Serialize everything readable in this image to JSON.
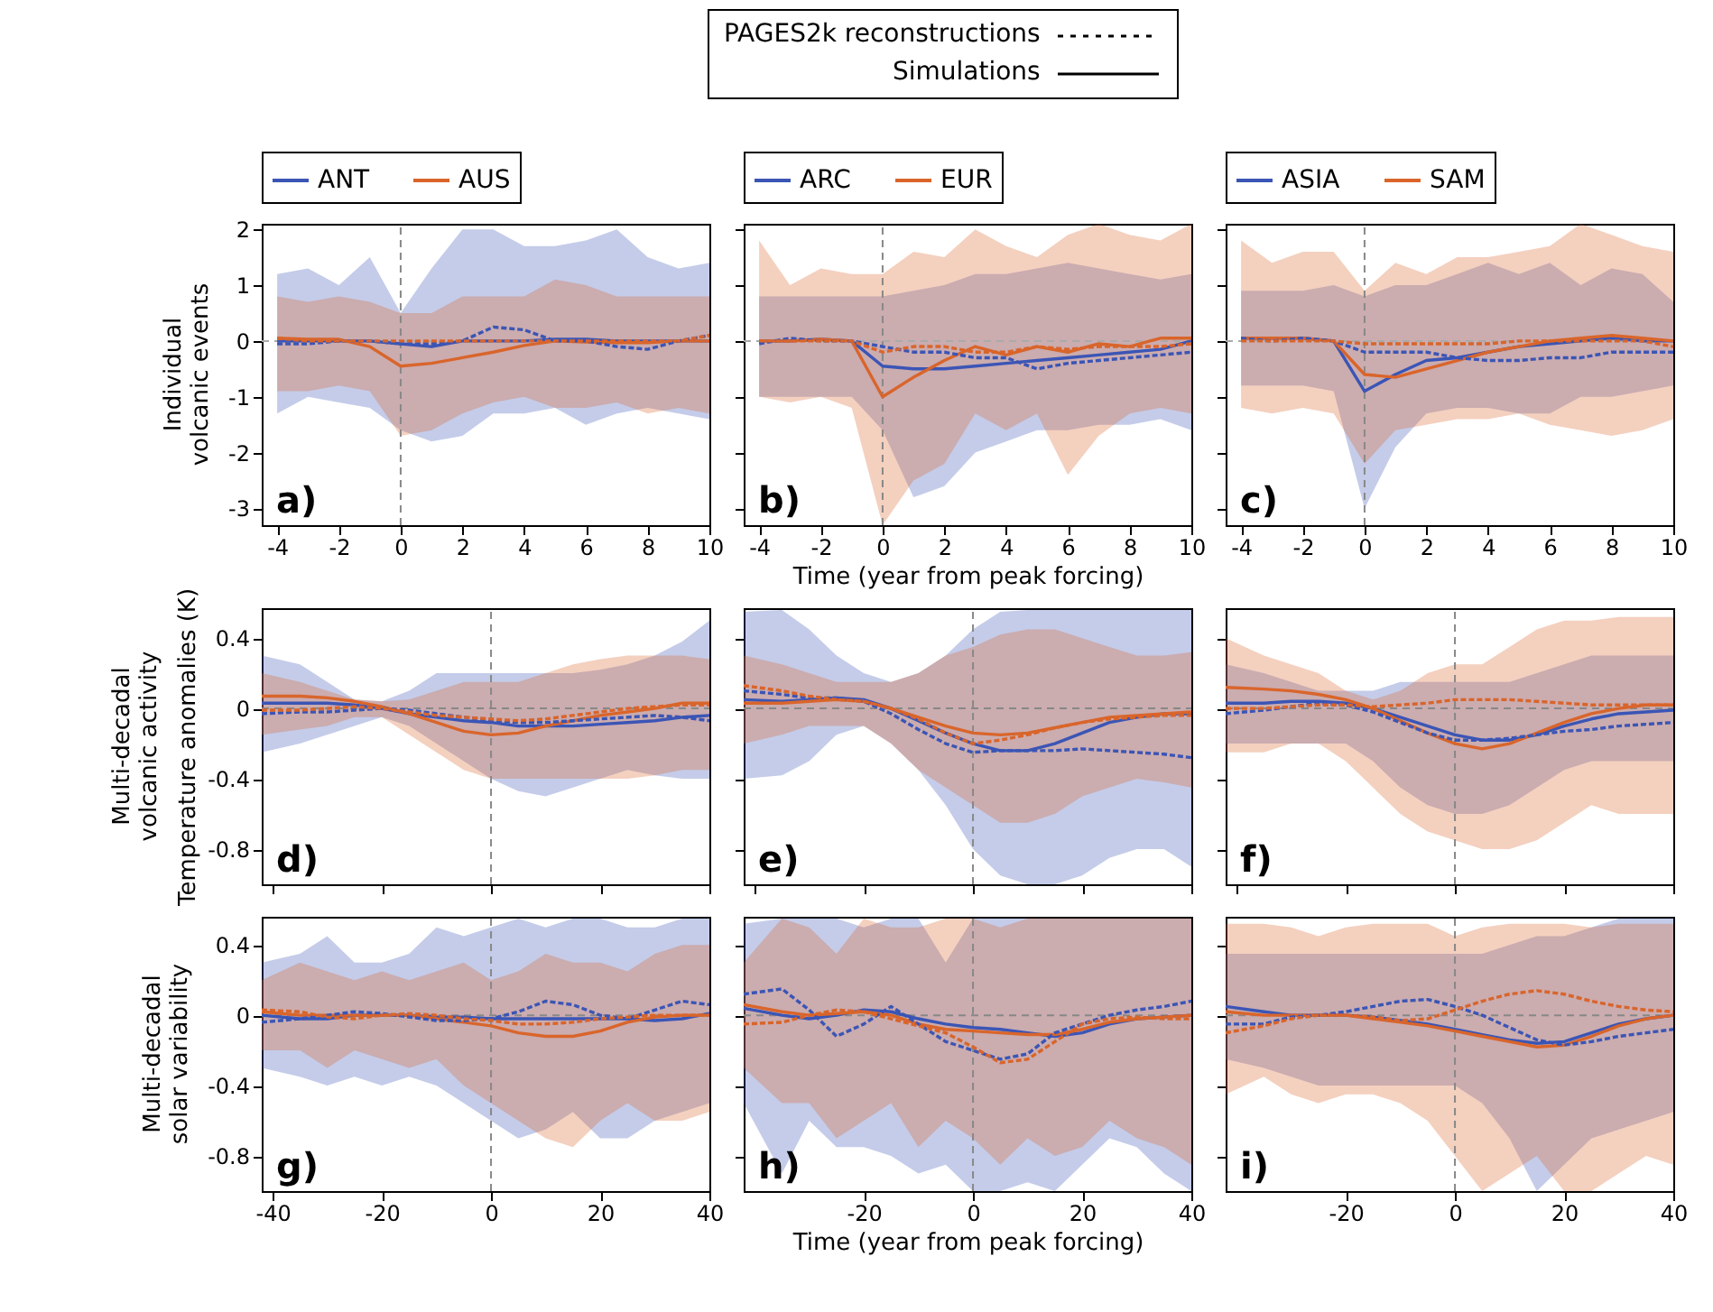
{
  "chart_data": [
    {
      "type": "other",
      "annotations": [
        "PAGES2k reconstructions",
        "Simulations"
      ]
    },
    {
      "type": "line",
      "title": "Individual volcanic events",
      "annotations": [
        "a)"
      ],
      "legend": "top",
      "x": [
        -4,
        -3,
        -2,
        -1,
        0,
        1,
        2,
        3,
        4,
        5,
        6,
        7,
        8,
        9,
        10
      ],
      "xlim": [
        -4.5,
        10
      ],
      "xticks": [
        -4,
        -2,
        0,
        2,
        4,
        6,
        8,
        10
      ],
      "ylim": [
        -3.3,
        2.1
      ],
      "yticks": [
        -3,
        -2,
        -1,
        0,
        1,
        2
      ],
      "ref_lines": [
        {
          "axis": "x",
          "value": 0,
          "color": "#888888",
          "line_style": "dashed"
        },
        {
          "axis": "y",
          "value": 0,
          "color": "#aaaaaa",
          "line_style": "dashed"
        }
      ],
      "series": [
        {
          "name": "ANT",
          "color": "#3b55b5",
          "values": [
            0,
            0,
            0,
            0,
            -0.05,
            -0.1,
            0,
            0,
            0,
            0.03,
            0.03,
            0,
            0,
            0,
            0
          ],
          "lower": [
            -1.3,
            -1,
            -1.1,
            -1.2,
            -1.6,
            -1.8,
            -1.7,
            -1.3,
            -1.3,
            -1.2,
            -1.5,
            -1.3,
            -1.2,
            -1.3,
            -1.4
          ],
          "upper": [
            1.2,
            1.3,
            1,
            1.5,
            0.5,
            1.3,
            2,
            2,
            1.7,
            1.7,
            1.8,
            2,
            1.5,
            1.3,
            1.4
          ]
        },
        {
          "name": "AUS",
          "color": "#d9652b",
          "values": [
            0.05,
            0.03,
            0.03,
            -0.1,
            -0.45,
            -0.4,
            -0.3,
            -0.2,
            -0.08,
            0,
            -0.02,
            -0.03,
            -0.03,
            0,
            0
          ],
          "lower": [
            -0.9,
            -0.9,
            -0.8,
            -0.9,
            -1.7,
            -1.6,
            -1.3,
            -1.1,
            -1,
            -1.2,
            -1.2,
            -1.1,
            -1.3,
            -1.2,
            -1.3
          ],
          "upper": [
            0.8,
            0.7,
            0.8,
            0.7,
            0.5,
            0.5,
            0.8,
            0.8,
            0.8,
            1.1,
            1,
            0.8,
            0.8,
            0.8,
            0.8
          ]
        },
        {
          "color": "#3b55b5",
          "line_style": "dotted",
          "values": [
            -0.05,
            -0.05,
            0,
            0,
            -0.05,
            -0.05,
            0,
            0.25,
            0.2,
            0,
            0,
            -0.1,
            -0.15,
            0,
            0.1
          ]
        },
        {
          "color": "#d9652b",
          "line_style": "dotted",
          "values": [
            0.05,
            0,
            0,
            0,
            0,
            0,
            0,
            0,
            0,
            0,
            0,
            0,
            0,
            0,
            0.1
          ]
        }
      ]
    },
    {
      "type": "line",
      "xlabel": "Time (year from peak forcing)",
      "annotations": [
        "b)"
      ],
      "legend": "top",
      "tick_labels": "x",
      "x": [
        -4,
        -3,
        -2,
        -1,
        0,
        1,
        2,
        3,
        4,
        5,
        6,
        7,
        8,
        9,
        10
      ],
      "xlim": [
        -4.5,
        10
      ],
      "xticks": [
        -4,
        -2,
        0,
        2,
        4,
        6,
        8,
        10
      ],
      "ylim": [
        -3.3,
        2.1
      ],
      "yticks": [
        -3,
        -2,
        -1,
        0,
        1,
        2
      ],
      "ref_lines": [
        {
          "axis": "x",
          "value": 0,
          "color": "#888888",
          "line_style": "dashed"
        },
        {
          "axis": "y",
          "value": 0,
          "color": "#aaaaaa",
          "line_style": "dashed"
        }
      ],
      "series": [
        {
          "name": "ARC",
          "color": "#3b55b5",
          "values": [
            0,
            0,
            0.03,
            0,
            -0.45,
            -0.5,
            -0.5,
            -0.45,
            -0.4,
            -0.35,
            -0.3,
            -0.25,
            -0.2,
            -0.15,
            0
          ],
          "lower": [
            -1,
            -1,
            -1,
            -1,
            -1.6,
            -2.8,
            -2.6,
            -2,
            -1.8,
            -1.6,
            -1.6,
            -1.5,
            -1.5,
            -1.4,
            -1.6
          ],
          "upper": [
            0.8,
            0.8,
            0.8,
            0.8,
            0.8,
            0.9,
            1,
            1.2,
            1.2,
            1.3,
            1.4,
            1.3,
            1.2,
            1.1,
            1.2
          ]
        },
        {
          "name": "EUR",
          "color": "#d9652b",
          "values": [
            0,
            0,
            0.03,
            0,
            -1,
            -0.65,
            -0.35,
            -0.1,
            -0.25,
            -0.1,
            -0.2,
            -0.05,
            -0.1,
            0.05,
            0.05
          ],
          "lower": [
            -1,
            -1.1,
            -1,
            -1.2,
            -3.3,
            -2.5,
            -2.2,
            -1.3,
            -1.6,
            -1.3,
            -2.4,
            -1.7,
            -1.3,
            -1.2,
            -1.3
          ],
          "upper": [
            1.8,
            1,
            1.3,
            1.2,
            1.2,
            1.6,
            1.5,
            2,
            1.7,
            1.5,
            1.9,
            2.1,
            1.9,
            1.8,
            2.1
          ]
        },
        {
          "color": "#3b55b5",
          "line_style": "dotted",
          "values": [
            -0.05,
            0.05,
            0,
            0,
            -0.1,
            -0.2,
            -0.2,
            -0.3,
            -0.3,
            -0.5,
            -0.4,
            -0.35,
            -0.3,
            -0.25,
            -0.2
          ]
        },
        {
          "color": "#d9652b",
          "line_style": "dotted",
          "values": [
            0,
            0,
            0,
            0,
            -0.2,
            -0.1,
            -0.1,
            -0.2,
            -0.2,
            -0.1,
            -0.15,
            -0.1,
            -0.1,
            -0.1,
            -0.05
          ]
        }
      ]
    },
    {
      "type": "line",
      "annotations": [
        "c)"
      ],
      "legend": "top",
      "tick_labels": "x",
      "x": [
        -4,
        -3,
        -2,
        -1,
        0,
        1,
        2,
        3,
        4,
        5,
        6,
        7,
        8,
        9,
        10
      ],
      "xlim": [
        -4.5,
        10
      ],
      "xticks": [
        -4,
        -2,
        0,
        2,
        4,
        6,
        8,
        10
      ],
      "ylim": [
        -3.3,
        2.1
      ],
      "yticks": [
        -3,
        -2,
        -1,
        0,
        1,
        2
      ],
      "ref_lines": [
        {
          "axis": "x",
          "value": 0,
          "color": "#888888",
          "line_style": "dashed"
        },
        {
          "axis": "y",
          "value": 0,
          "color": "#aaaaaa",
          "line_style": "dashed"
        }
      ],
      "series": [
        {
          "name": "ASIA",
          "color": "#3b55b5",
          "values": [
            0.05,
            0.05,
            0.05,
            0,
            -0.9,
            -0.6,
            -0.35,
            -0.3,
            -0.2,
            -0.1,
            -0.05,
            0,
            0.05,
            0,
            0
          ],
          "lower": [
            -0.8,
            -0.8,
            -0.8,
            -0.9,
            -3,
            -1.9,
            -1.3,
            -1.2,
            -1.2,
            -1.3,
            -1.3,
            -1,
            -1,
            -0.9,
            -0.8
          ],
          "upper": [
            0.9,
            0.9,
            0.9,
            1,
            0.8,
            1,
            1,
            1.2,
            1.4,
            1.2,
            1.4,
            1,
            1.3,
            1.2,
            0.7
          ]
        },
        {
          "name": "SAM",
          "color": "#d9652b",
          "values": [
            0.05,
            0.05,
            0.05,
            0,
            -0.6,
            -0.65,
            -0.5,
            -0.35,
            -0.2,
            -0.1,
            0,
            0.05,
            0.1,
            0.05,
            0
          ],
          "lower": [
            -1.2,
            -1.3,
            -1.2,
            -1.3,
            -2.2,
            -1.6,
            -1.5,
            -1.4,
            -1.4,
            -1.3,
            -1.5,
            -1.6,
            -1.7,
            -1.6,
            -1.4
          ],
          "upper": [
            1.8,
            1.4,
            1.6,
            1.6,
            0.9,
            1.4,
            1.2,
            1.5,
            1.5,
            1.6,
            1.7,
            2.1,
            1.9,
            1.7,
            1.6
          ]
        },
        {
          "color": "#3b55b5",
          "line_style": "dotted",
          "values": [
            0.05,
            0,
            0.05,
            0,
            -0.2,
            -0.2,
            -0.2,
            -0.3,
            -0.35,
            -0.35,
            -0.3,
            -0.3,
            -0.2,
            -0.2,
            -0.2
          ]
        },
        {
          "color": "#d9652b",
          "line_style": "dotted",
          "values": [
            0,
            0,
            0,
            0,
            -0.05,
            -0.05,
            -0.05,
            -0.05,
            -0.05,
            0,
            0,
            0,
            0,
            0,
            -0.1
          ]
        }
      ]
    },
    {
      "type": "line",
      "title": "Multi-decadal volcanic activity",
      "ylabel": "Temperature anomalies (K)",
      "annotations": [
        "d)"
      ],
      "tick_labels": "y",
      "x": [
        -42,
        -35,
        -30,
        -25,
        -20,
        -15,
        -10,
        -5,
        0,
        5,
        10,
        15,
        20,
        25,
        30,
        35,
        40
      ],
      "xlim": [
        -42,
        40
      ],
      "xticks": [
        -40,
        -20,
        0,
        20,
        40
      ],
      "ylim": [
        -1,
        0.57
      ],
      "yticks": [
        -0.8,
        -0.4,
        0,
        0.4
      ],
      "ref_lines": [
        {
          "axis": "x",
          "value": 0,
          "color": "#888888",
          "line_style": "dashed"
        },
        {
          "axis": "y",
          "value": 0,
          "color": "#888888",
          "line_style": "dashed"
        }
      ],
      "series": [
        {
          "color": "#3b55b5",
          "values": [
            0.03,
            0.03,
            0.03,
            0.02,
            0,
            -0.03,
            -0.05,
            -0.07,
            -0.08,
            -0.1,
            -0.1,
            -0.1,
            -0.09,
            -0.08,
            -0.07,
            -0.05,
            -0.04
          ],
          "lower": [
            -0.25,
            -0.2,
            -0.15,
            -0.1,
            -0.05,
            -0.1,
            -0.2,
            -0.3,
            -0.4,
            -0.47,
            -0.5,
            -0.45,
            -0.4,
            -0.35,
            -0.38,
            -0.4,
            -0.4
          ],
          "upper": [
            0.3,
            0.25,
            0.15,
            0.05,
            0.04,
            0.1,
            0.2,
            0.2,
            0.2,
            0.2,
            0.2,
            0.2,
            0.22,
            0.25,
            0.3,
            0.38,
            0.5
          ]
        },
        {
          "color": "#d9652b",
          "values": [
            0.07,
            0.07,
            0.06,
            0.04,
            0.01,
            -0.03,
            -0.08,
            -0.13,
            -0.15,
            -0.14,
            -0.1,
            -0.07,
            -0.04,
            -0.02,
            0,
            0.03,
            0.03
          ],
          "lower": [
            -0.15,
            -0.12,
            -0.1,
            -0.05,
            -0.05,
            -0.15,
            -0.25,
            -0.35,
            -0.4,
            -0.4,
            -0.4,
            -0.4,
            -0.4,
            -0.4,
            -0.38,
            -0.35,
            -0.35
          ],
          "upper": [
            0.2,
            0.15,
            0.1,
            0.05,
            0.04,
            0.05,
            0.1,
            0.15,
            0.15,
            0.15,
            0.2,
            0.25,
            0.28,
            0.3,
            0.3,
            0.3,
            0.28
          ]
        },
        {
          "color": "#3b55b5",
          "line_style": "dotted",
          "values": [
            -0.03,
            -0.02,
            -0.02,
            -0.01,
            0,
            -0.01,
            -0.03,
            -0.05,
            -0.07,
            -0.08,
            -0.08,
            -0.07,
            -0.06,
            -0.05,
            -0.04,
            -0.05,
            -0.07
          ]
        },
        {
          "color": "#d9652b",
          "line_style": "dotted",
          "values": [
            -0.01,
            -0.01,
            0,
            0.01,
            0,
            -0.02,
            -0.04,
            -0.05,
            -0.06,
            -0.07,
            -0.06,
            -0.04,
            -0.02,
            0,
            0.01,
            0.02,
            0.02
          ]
        }
      ]
    },
    {
      "type": "line",
      "annotations": [
        "e)"
      ],
      "tick_labels": false,
      "x": [
        -42,
        -35,
        -30,
        -25,
        -20,
        -15,
        -10,
        -5,
        0,
        5,
        10,
        15,
        20,
        25,
        30,
        35,
        40
      ],
      "xlim": [
        -42,
        40
      ],
      "xticks": [
        -40,
        -20,
        0,
        20,
        40
      ],
      "ylim": [
        -1,
        0.57
      ],
      "yticks": [
        -0.8,
        -0.4,
        0,
        0.4
      ],
      "ref_lines": [
        {
          "axis": "x",
          "value": 0,
          "color": "#888888",
          "line_style": "dashed"
        },
        {
          "axis": "y",
          "value": 0,
          "color": "#888888",
          "line_style": "dashed"
        }
      ],
      "series": [
        {
          "color": "#3b55b5",
          "values": [
            0.05,
            0.04,
            0.05,
            0.06,
            0.05,
            0,
            -0.07,
            -0.14,
            -0.2,
            -0.24,
            -0.24,
            -0.2,
            -0.14,
            -0.08,
            -0.05,
            -0.03,
            -0.03
          ],
          "lower": [
            -0.4,
            -0.38,
            -0.3,
            -0.15,
            -0.1,
            -0.2,
            -0.35,
            -0.55,
            -0.8,
            -0.95,
            -1,
            -1,
            -0.95,
            -0.85,
            -0.8,
            -0.8,
            -0.9
          ],
          "upper": [
            0.55,
            0.56,
            0.45,
            0.3,
            0.2,
            0.15,
            0.2,
            0.3,
            0.45,
            0.55,
            0.56,
            0.56,
            0.56,
            0.56,
            0.56,
            0.56,
            0.56
          ]
        },
        {
          "color": "#d9652b",
          "values": [
            0.03,
            0.03,
            0.04,
            0.05,
            0.04,
            0,
            -0.05,
            -0.1,
            -0.14,
            -0.15,
            -0.14,
            -0.11,
            -0.08,
            -0.05,
            -0.04,
            -0.03,
            -0.02
          ],
          "lower": [
            -0.2,
            -0.15,
            -0.1,
            -0.1,
            -0.1,
            -0.2,
            -0.35,
            -0.45,
            -0.55,
            -0.65,
            -0.65,
            -0.6,
            -0.5,
            -0.45,
            -0.4,
            -0.42,
            -0.45
          ],
          "upper": [
            0.3,
            0.25,
            0.2,
            0.15,
            0.15,
            0.15,
            0.2,
            0.3,
            0.35,
            0.42,
            0.45,
            0.45,
            0.4,
            0.35,
            0.3,
            0.3,
            0.32
          ]
        },
        {
          "color": "#3b55b5",
          "line_style": "dotted",
          "values": [
            0.1,
            0.08,
            0.06,
            0.06,
            0.04,
            -0.03,
            -0.12,
            -0.2,
            -0.25,
            -0.24,
            -0.24,
            -0.24,
            -0.23,
            -0.24,
            -0.25,
            -0.26,
            -0.28
          ]
        },
        {
          "color": "#d9652b",
          "line_style": "dotted",
          "values": [
            0.13,
            0.1,
            0.07,
            0.05,
            0.04,
            0,
            -0.06,
            -0.14,
            -0.2,
            -0.18,
            -0.15,
            -0.11,
            -0.08,
            -0.06,
            -0.05,
            -0.04,
            -0.04
          ]
        }
      ]
    },
    {
      "type": "line",
      "annotations": [
        "f)"
      ],
      "tick_labels": false,
      "x": [
        -42,
        -35,
        -30,
        -25,
        -20,
        -15,
        -10,
        -5,
        0,
        5,
        10,
        15,
        20,
        25,
        30,
        35,
        40
      ],
      "xlim": [
        -42,
        40
      ],
      "xticks": [
        -40,
        -20,
        0,
        20,
        40
      ],
      "ylim": [
        -1,
        0.57
      ],
      "yticks": [
        -0.8,
        -0.4,
        0,
        0.4
      ],
      "ref_lines": [
        {
          "axis": "x",
          "value": 0,
          "color": "#888888",
          "line_style": "dashed"
        },
        {
          "axis": "y",
          "value": 0,
          "color": "#888888",
          "line_style": "dashed"
        }
      ],
      "series": [
        {
          "color": "#3b55b5",
          "values": [
            0.03,
            0.03,
            0.04,
            0.04,
            0.03,
            0,
            -0.05,
            -0.1,
            -0.15,
            -0.18,
            -0.18,
            -0.15,
            -0.1,
            -0.06,
            -0.03,
            -0.02,
            -0.01
          ],
          "lower": [
            -0.2,
            -0.2,
            -0.2,
            -0.2,
            -0.2,
            -0.3,
            -0.45,
            -0.55,
            -0.6,
            -0.6,
            -0.55,
            -0.45,
            -0.35,
            -0.3,
            -0.3,
            -0.3,
            -0.3
          ],
          "upper": [
            0.25,
            0.2,
            0.15,
            0.1,
            0.1,
            0.1,
            0.15,
            0.15,
            0.15,
            0.15,
            0.15,
            0.2,
            0.25,
            0.3,
            0.3,
            0.3,
            0.3
          ]
        },
        {
          "color": "#d9652b",
          "values": [
            0.12,
            0.11,
            0.1,
            0.08,
            0.05,
            0,
            -0.07,
            -0.14,
            -0.2,
            -0.23,
            -0.2,
            -0.14,
            -0.08,
            -0.03,
            0,
            0.02,
            0.02
          ],
          "lower": [
            -0.25,
            -0.25,
            -0.2,
            -0.2,
            -0.3,
            -0.45,
            -0.6,
            -0.7,
            -0.75,
            -0.8,
            -0.8,
            -0.75,
            -0.65,
            -0.55,
            -0.6,
            -0.6,
            -0.6
          ],
          "upper": [
            0.4,
            0.3,
            0.25,
            0.2,
            0.1,
            0.05,
            0.1,
            0.2,
            0.25,
            0.25,
            0.35,
            0.45,
            0.5,
            0.5,
            0.52,
            0.52,
            0.52
          ]
        },
        {
          "color": "#3b55b5",
          "line_style": "dotted",
          "values": [
            -0.03,
            -0.01,
            0.01,
            0.03,
            0.02,
            -0.02,
            -0.08,
            -0.14,
            -0.18,
            -0.18,
            -0.17,
            -0.15,
            -0.13,
            -0.12,
            -0.1,
            -0.09,
            -0.08
          ]
        },
        {
          "color": "#d9652b",
          "line_style": "dotted",
          "values": [
            0,
            0,
            0.01,
            0.02,
            0.02,
            0.01,
            0.02,
            0.03,
            0.05,
            0.05,
            0.05,
            0.04,
            0.03,
            0.02,
            0.02,
            0.02,
            0.02
          ]
        }
      ]
    },
    {
      "type": "line",
      "title": "Multi-decadal solar variability",
      "annotations": [
        "g)"
      ],
      "x": [
        -42,
        -35,
        -30,
        -25,
        -20,
        -15,
        -10,
        -5,
        0,
        5,
        10,
        15,
        20,
        25,
        30,
        35,
        40
      ],
      "xlim": [
        -42,
        40
      ],
      "xticks": [
        -40,
        -20,
        0,
        20,
        40
      ],
      "ylim": [
        -1,
        0.56
      ],
      "yticks": [
        -0.8,
        -0.4,
        0,
        0.4
      ],
      "ref_lines": [
        {
          "axis": "x",
          "value": 0,
          "color": "#888888",
          "line_style": "dashed"
        },
        {
          "axis": "y",
          "value": 0,
          "color": "#888888",
          "line_style": "dashed"
        }
      ],
      "series": [
        {
          "color": "#3b55b5",
          "values": [
            0,
            -0.02,
            -0.02,
            0,
            0,
            0,
            -0.01,
            -0.01,
            -0.02,
            -0.02,
            -0.02,
            -0.02,
            -0.02,
            -0.02,
            -0.03,
            -0.02,
            0.01
          ],
          "lower": [
            -0.3,
            -0.35,
            -0.4,
            -0.35,
            -0.4,
            -0.35,
            -0.4,
            -0.5,
            -0.6,
            -0.7,
            -0.65,
            -0.55,
            -0.7,
            -0.7,
            -0.6,
            -0.55,
            -0.5
          ],
          "upper": [
            0.3,
            0.35,
            0.45,
            0.3,
            0.3,
            0.35,
            0.5,
            0.45,
            0.5,
            0.55,
            0.5,
            0.55,
            0.55,
            0.5,
            0.5,
            0.55,
            0.55
          ]
        },
        {
          "color": "#d9652b",
          "values": [
            0.02,
            0,
            0,
            0,
            0,
            0,
            -0.02,
            -0.04,
            -0.06,
            -0.1,
            -0.12,
            -0.12,
            -0.09,
            -0.04,
            -0.01,
            0,
            0
          ],
          "lower": [
            -0.2,
            -0.2,
            -0.3,
            -0.2,
            -0.25,
            -0.3,
            -0.25,
            -0.4,
            -0.5,
            -0.6,
            -0.7,
            -0.75,
            -0.6,
            -0.5,
            -0.6,
            -0.6,
            -0.55
          ],
          "upper": [
            0.2,
            0.3,
            0.25,
            0.2,
            0.25,
            0.2,
            0.25,
            0.3,
            0.2,
            0.25,
            0.35,
            0.3,
            0.3,
            0.25,
            0.35,
            0.4,
            0.4
          ]
        },
        {
          "color": "#3b55b5",
          "line_style": "dotted",
          "values": [
            -0.04,
            -0.02,
            0,
            0.02,
            0.01,
            -0.01,
            -0.03,
            -0.03,
            -0.02,
            0.02,
            0.08,
            0.06,
            0,
            -0.02,
            0.03,
            0.08,
            0.06
          ]
        },
        {
          "color": "#d9652b",
          "line_style": "dotted",
          "values": [
            0.03,
            0.02,
            -0.01,
            -0.02,
            0,
            0.01,
            0,
            -0.02,
            -0.03,
            -0.05,
            -0.05,
            -0.04,
            -0.02,
            -0.01,
            0,
            0,
            0
          ]
        }
      ]
    },
    {
      "type": "line",
      "xlabel": "Time (year from peak forcing)",
      "annotations": [
        "h)"
      ],
      "tick_labels": "x",
      "x": [
        -42,
        -35,
        -30,
        -25,
        -20,
        -15,
        -10,
        -5,
        0,
        5,
        10,
        15,
        20,
        25,
        30,
        35,
        40
      ],
      "xlim": [
        -42,
        40
      ],
      "xticks": [
        -20,
        0,
        20,
        40
      ],
      "ylim": [
        -1,
        0.56
      ],
      "yticks": [
        -0.8,
        -0.4,
        0,
        0.4
      ],
      "ref_lines": [
        {
          "axis": "x",
          "value": 0,
          "color": "#888888",
          "line_style": "dashed"
        },
        {
          "axis": "y",
          "value": 0,
          "color": "#888888",
          "line_style": "dashed"
        }
      ],
      "series": [
        {
          "color": "#3b55b5",
          "values": [
            0.04,
            0,
            -0.02,
            0,
            0.03,
            0.02,
            -0.02,
            -0.05,
            -0.07,
            -0.08,
            -0.1,
            -0.12,
            -0.1,
            -0.05,
            -0.02,
            -0.01,
            0
          ],
          "lower": [
            -0.5,
            -0.9,
            -0.6,
            -0.75,
            -0.75,
            -0.8,
            -0.9,
            -0.85,
            -1,
            -1,
            -0.95,
            -1,
            -0.85,
            -0.7,
            -0.75,
            -0.9,
            -1
          ],
          "upper": [
            0.52,
            0.55,
            0.55,
            0.55,
            0.5,
            0.55,
            0.55,
            0.3,
            0.55,
            0.55,
            0.55,
            0.55,
            0.55,
            0.55,
            0.55,
            0.55,
            0.55
          ]
        },
        {
          "color": "#d9652b",
          "values": [
            0.06,
            0.02,
            0,
            0.01,
            0.02,
            0,
            -0.05,
            -0.08,
            -0.09,
            -0.1,
            -0.11,
            -0.11,
            -0.08,
            -0.04,
            -0.02,
            -0.01,
            0
          ],
          "lower": [
            -0.3,
            -0.5,
            -0.5,
            -0.7,
            -0.6,
            -0.5,
            -0.75,
            -0.6,
            -0.7,
            -0.85,
            -0.7,
            -0.8,
            -0.75,
            -0.6,
            -0.7,
            -0.75,
            -0.85
          ],
          "upper": [
            0.3,
            0.55,
            0.5,
            0.35,
            0.55,
            0.5,
            0.5,
            0.55,
            0.55,
            0.5,
            0.55,
            0.55,
            0.55,
            0.55,
            0.55,
            0.55,
            0.55
          ]
        },
        {
          "color": "#3b55b5",
          "line_style": "dotted",
          "values": [
            0.12,
            0.15,
            0.03,
            -0.12,
            -0.05,
            0.05,
            -0.05,
            -0.15,
            -0.2,
            -0.25,
            -0.22,
            -0.1,
            -0.05,
            0,
            0.03,
            0.05,
            0.08
          ]
        },
        {
          "color": "#d9652b",
          "line_style": "dotted",
          "values": [
            -0.05,
            -0.04,
            0,
            0.03,
            0.02,
            -0.02,
            -0.06,
            -0.1,
            -0.18,
            -0.27,
            -0.25,
            -0.15,
            -0.05,
            -0.02,
            -0.01,
            -0.02,
            -0.02
          ]
        }
      ]
    },
    {
      "type": "line",
      "annotations": [
        "i)"
      ],
      "tick_labels": "x",
      "x": [
        -42,
        -35,
        -30,
        -25,
        -20,
        -15,
        -10,
        -5,
        0,
        5,
        10,
        15,
        20,
        25,
        30,
        35,
        40
      ],
      "xlim": [
        -42,
        40
      ],
      "xticks": [
        -20,
        0,
        20,
        40
      ],
      "ylim": [
        -1,
        0.56
      ],
      "yticks": [
        -0.8,
        -0.4,
        0,
        0.4
      ],
      "ref_lines": [
        {
          "axis": "x",
          "value": 0,
          "color": "#888888",
          "line_style": "dashed"
        },
        {
          "axis": "y",
          "value": 0,
          "color": "#888888",
          "line_style": "dashed"
        }
      ],
      "series": [
        {
          "color": "#3b55b5",
          "values": [
            0.05,
            0.02,
            0,
            0,
            0,
            -0.01,
            -0.03,
            -0.05,
            -0.08,
            -0.11,
            -0.14,
            -0.16,
            -0.15,
            -0.1,
            -0.05,
            -0.02,
            0
          ],
          "lower": [
            -0.25,
            -0.3,
            -0.35,
            -0.4,
            -0.4,
            -0.4,
            -0.4,
            -0.4,
            -0.4,
            -0.5,
            -0.7,
            -1,
            -0.85,
            -0.7,
            -0.65,
            -0.6,
            -0.55
          ],
          "upper": [
            0.35,
            0.35,
            0.35,
            0.35,
            0.35,
            0.35,
            0.35,
            0.35,
            0.35,
            0.35,
            0.4,
            0.45,
            0.45,
            0.5,
            0.55,
            0.55,
            0.55
          ]
        },
        {
          "color": "#d9652b",
          "values": [
            0.02,
            0,
            0,
            0,
            0,
            -0.02,
            -0.04,
            -0.06,
            -0.09,
            -0.12,
            -0.15,
            -0.18,
            -0.17,
            -0.12,
            -0.06,
            -0.02,
            0
          ],
          "lower": [
            -0.45,
            -0.35,
            -0.45,
            -0.5,
            -0.45,
            -0.45,
            -0.5,
            -0.6,
            -0.8,
            -1,
            -0.9,
            -0.8,
            -1,
            -1,
            -0.9,
            -0.8,
            -0.85
          ],
          "upper": [
            0.52,
            0.52,
            0.5,
            0.45,
            0.5,
            0.52,
            0.52,
            0.52,
            0.45,
            0.5,
            0.52,
            0.52,
            0.52,
            0.5,
            0.52,
            0.52,
            0.52
          ]
        },
        {
          "color": "#3b55b5",
          "line_style": "dotted",
          "values": [
            -0.05,
            -0.05,
            -0.01,
            0,
            0.02,
            0.05,
            0.08,
            0.09,
            0.05,
            0,
            -0.07,
            -0.14,
            -0.17,
            -0.15,
            -0.12,
            -0.1,
            -0.08
          ]
        },
        {
          "color": "#d9652b",
          "line_style": "dotted",
          "values": [
            -0.1,
            -0.06,
            -0.02,
            0,
            0,
            -0.01,
            -0.03,
            -0.02,
            0.03,
            0.08,
            0.12,
            0.14,
            0.12,
            0.08,
            0.05,
            0.03,
            0.02
          ]
        }
      ]
    }
  ]
}
